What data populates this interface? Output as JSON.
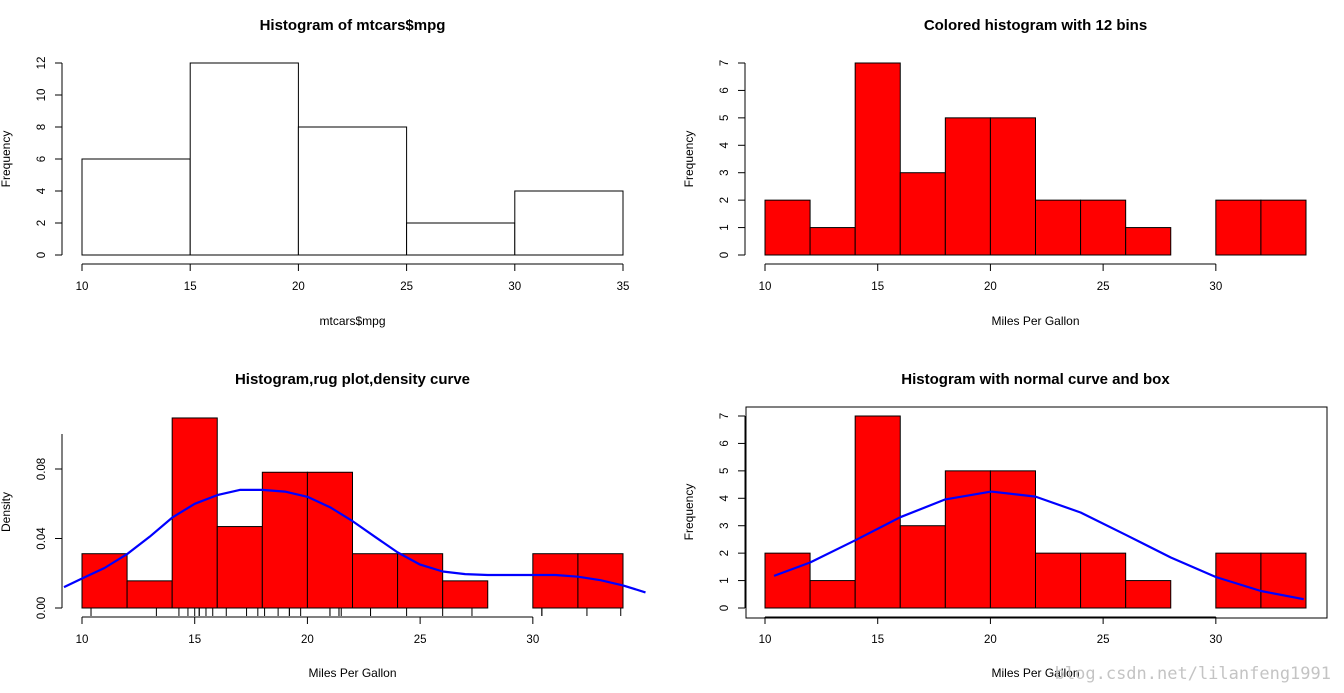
{
  "watermark": "blog.csdn.net/lilanfeng1991",
  "colors": {
    "bar_fill_red": "#ff0000",
    "bar_fill_plain": "#ffffff",
    "curve": "#0000ff",
    "axis": "#000000"
  },
  "chart_data": [
    {
      "type": "bar",
      "title": "Histogram of mtcars$mpg",
      "xlabel": "mtcars$mpg",
      "ylabel": "Frequency",
      "bins": [
        [
          10,
          15
        ],
        [
          15,
          20
        ],
        [
          20,
          25
        ],
        [
          25,
          30
        ],
        [
          30,
          35
        ]
      ],
      "values": [
        6,
        12,
        8,
        2,
        4
      ],
      "xlim": [
        10,
        35
      ],
      "ylim": [
        0,
        12
      ],
      "xticks": [
        10,
        15,
        20,
        25,
        30,
        35
      ],
      "yticks": [
        0,
        2,
        4,
        6,
        8,
        10,
        12
      ],
      "fill": "#ffffff",
      "box": false
    },
    {
      "type": "bar",
      "title": "Colored histogram with 12 bins",
      "xlabel": "Miles Per Gallon",
      "ylabel": "Frequency",
      "bins": [
        [
          10,
          12
        ],
        [
          12,
          14
        ],
        [
          14,
          16
        ],
        [
          16,
          18
        ],
        [
          18,
          20
        ],
        [
          20,
          22
        ],
        [
          22,
          24
        ],
        [
          24,
          26
        ],
        [
          26,
          28
        ],
        [
          28,
          30
        ],
        [
          30,
          32
        ],
        [
          32,
          34
        ]
      ],
      "values": [
        2,
        1,
        7,
        3,
        5,
        5,
        2,
        2,
        1,
        0,
        2,
        2
      ],
      "xlim": [
        10,
        34
      ],
      "ylim": [
        0,
        7
      ],
      "xticks": [
        10,
        15,
        20,
        25,
        30
      ],
      "yticks": [
        0,
        1,
        2,
        3,
        4,
        5,
        6,
        7
      ],
      "fill": "#ff0000",
      "box": false
    },
    {
      "type": "bar",
      "title": "Histogram,rug plot,density curve",
      "xlabel": "Miles Per Gallon",
      "ylabel": "Density",
      "bins": [
        [
          10,
          12
        ],
        [
          12,
          14
        ],
        [
          14,
          16
        ],
        [
          16,
          18
        ],
        [
          18,
          20
        ],
        [
          20,
          22
        ],
        [
          22,
          24
        ],
        [
          24,
          26
        ],
        [
          26,
          28
        ],
        [
          28,
          30
        ],
        [
          30,
          32
        ],
        [
          32,
          34
        ]
      ],
      "values": [
        0.03125,
        0.015625,
        0.109375,
        0.046875,
        0.078125,
        0.078125,
        0.03125,
        0.03125,
        0.015625,
        0,
        0.03125,
        0.03125
      ],
      "xlim": [
        10,
        34
      ],
      "ylim": [
        0,
        0.1
      ],
      "xticks": [
        10,
        15,
        20,
        25,
        30
      ],
      "yticks": [
        0.0,
        0.04,
        0.08
      ],
      "ytick_labels": [
        "0.00",
        "0.04",
        "0.08"
      ],
      "fill": "#ff0000",
      "box": false,
      "density_curve": {
        "x": [
          9.2,
          10,
          11,
          12,
          13,
          14,
          15,
          16,
          17,
          18,
          19,
          20,
          21,
          22,
          23,
          24,
          25,
          26,
          27,
          28,
          29,
          30,
          31,
          32,
          33,
          34,
          35
        ],
        "y": [
          0.012,
          0.017,
          0.023,
          0.031,
          0.041,
          0.052,
          0.06,
          0.065,
          0.068,
          0.068,
          0.067,
          0.064,
          0.058,
          0.05,
          0.041,
          0.032,
          0.025,
          0.021,
          0.0195,
          0.019,
          0.019,
          0.019,
          0.019,
          0.018,
          0.016,
          0.013,
          0.009
        ]
      },
      "rug": [
        21,
        21,
        22.8,
        21.4,
        18.7,
        18.1,
        14.3,
        24.4,
        22.8,
        19.2,
        17.8,
        16.4,
        17.3,
        15.2,
        10.4,
        10.4,
        14.7,
        32.4,
        30.4,
        33.9,
        21.5,
        15.5,
        15.2,
        13.3,
        19.2,
        27.3,
        26,
        30.4,
        15.8,
        19.7,
        15,
        21.4
      ]
    },
    {
      "type": "bar",
      "title": "Histogram with normal curve and box",
      "xlabel": "Miles Per Gallon",
      "ylabel": "Frequency",
      "bins": [
        [
          10,
          12
        ],
        [
          12,
          14
        ],
        [
          14,
          16
        ],
        [
          16,
          18
        ],
        [
          18,
          20
        ],
        [
          20,
          22
        ],
        [
          22,
          24
        ],
        [
          24,
          26
        ],
        [
          26,
          28
        ],
        [
          28,
          30
        ],
        [
          30,
          32
        ],
        [
          32,
          34
        ]
      ],
      "values": [
        2,
        1,
        7,
        3,
        5,
        5,
        2,
        2,
        1,
        0,
        2,
        2
      ],
      "xlim": [
        10,
        34
      ],
      "ylim": [
        0,
        7
      ],
      "xticks": [
        10,
        15,
        20,
        25,
        30
      ],
      "yticks": [
        0,
        1,
        2,
        3,
        4,
        5,
        6,
        7
      ],
      "fill": "#ff0000",
      "box": true,
      "normal_curve": {
        "x": [
          10.4,
          12,
          14,
          16,
          18,
          20,
          20.09,
          22,
          24,
          26,
          28,
          30,
          32,
          33.9
        ],
        "y": [
          1.17,
          1.66,
          2.47,
          3.31,
          3.96,
          4.24,
          4.24,
          4.06,
          3.48,
          2.67,
          1.84,
          1.13,
          0.62,
          0.32
        ]
      }
    }
  ]
}
